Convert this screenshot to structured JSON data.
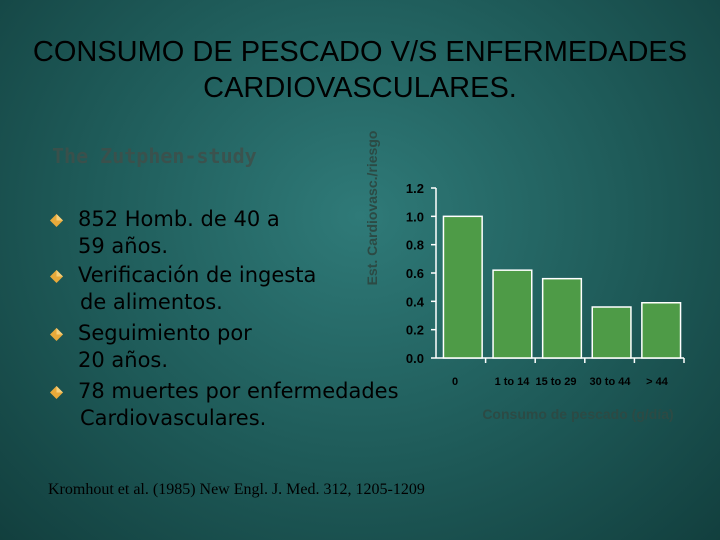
{
  "slide": {
    "title_line1": "CONSUMO DE PESCADO V/S ENFERMEDADES",
    "title_line2": "CARDIOVASCULARES.",
    "subtitle": "The Zutphen-study",
    "bullets": [
      {
        "line1": "852 Homb. de 40 a",
        "line2": "59 años."
      },
      {
        "line1": "Verificación de ingesta",
        "line2": "de alimentos."
      },
      {
        "line1": "Seguimiento por",
        "line2": "20 años."
      },
      {
        "line1": "78 muertes por enfermedades",
        "line2": "Cardiovasculares."
      }
    ],
    "citation": "Kromhout et al. (1985) New Engl. J. Med. 312, 1205-1209"
  },
  "colors": {
    "bar_fill": "#4e9b47",
    "bar_stroke": "#ffffff",
    "axis": "#ffffff",
    "bullet": "#e8a93a",
    "xlabel_color": "#2c4a44"
  },
  "chart_data": {
    "type": "bar",
    "categories": [
      "0",
      "1 to 14",
      "15 to 29",
      "30 to 44",
      "> 44"
    ],
    "values": [
      1.0,
      0.62,
      0.56,
      0.36,
      0.39
    ],
    "ylim": [
      0,
      1.2
    ],
    "yticks": [
      "0.0",
      "0.2",
      "0.4",
      "0.6",
      "0.8",
      "1.0",
      "1.2"
    ],
    "ylabel": "Est. Cardiovasc./riesgo",
    "xlabel": "Consumo de pescado (g/día)",
    "grid": false
  }
}
